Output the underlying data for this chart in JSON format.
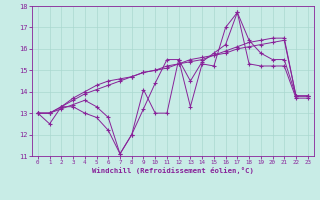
{
  "xlabel": "Windchill (Refroidissement éolien,°C)",
  "background_color": "#c8ece6",
  "line_color": "#882299",
  "ylim": [
    11,
    18
  ],
  "xlim": [
    -0.5,
    23.5
  ],
  "yticks": [
    11,
    12,
    13,
    14,
    15,
    16,
    17,
    18
  ],
  "xticks": [
    0,
    1,
    2,
    3,
    4,
    5,
    6,
    7,
    8,
    9,
    10,
    11,
    12,
    13,
    14,
    15,
    16,
    17,
    18,
    19,
    20,
    21,
    22,
    23
  ],
  "series": [
    [
      13.0,
      12.5,
      13.3,
      13.3,
      13.0,
      12.8,
      12.2,
      11.1,
      12.0,
      14.1,
      13.0,
      13.0,
      15.5,
      13.3,
      15.3,
      15.2,
      17.0,
      17.7,
      15.3,
      15.2,
      15.2,
      15.2,
      13.7,
      13.7
    ],
    [
      13.0,
      13.0,
      13.2,
      13.4,
      13.6,
      13.3,
      12.8,
      11.1,
      12.0,
      13.2,
      14.4,
      15.5,
      15.5,
      14.5,
      15.4,
      15.8,
      16.2,
      17.7,
      16.4,
      15.8,
      15.5,
      15.5,
      13.8,
      13.8
    ],
    [
      13.0,
      13.0,
      13.3,
      13.7,
      14.0,
      14.3,
      14.5,
      14.6,
      14.7,
      14.9,
      15.0,
      15.1,
      15.3,
      15.4,
      15.5,
      15.7,
      15.9,
      16.1,
      16.3,
      16.4,
      16.5,
      16.5,
      13.8,
      13.8
    ],
    [
      13.0,
      13.0,
      13.3,
      13.6,
      13.9,
      14.1,
      14.3,
      14.5,
      14.7,
      14.9,
      15.0,
      15.2,
      15.3,
      15.5,
      15.6,
      15.7,
      15.8,
      16.0,
      16.1,
      16.2,
      16.3,
      16.4,
      13.8,
      13.8
    ]
  ]
}
